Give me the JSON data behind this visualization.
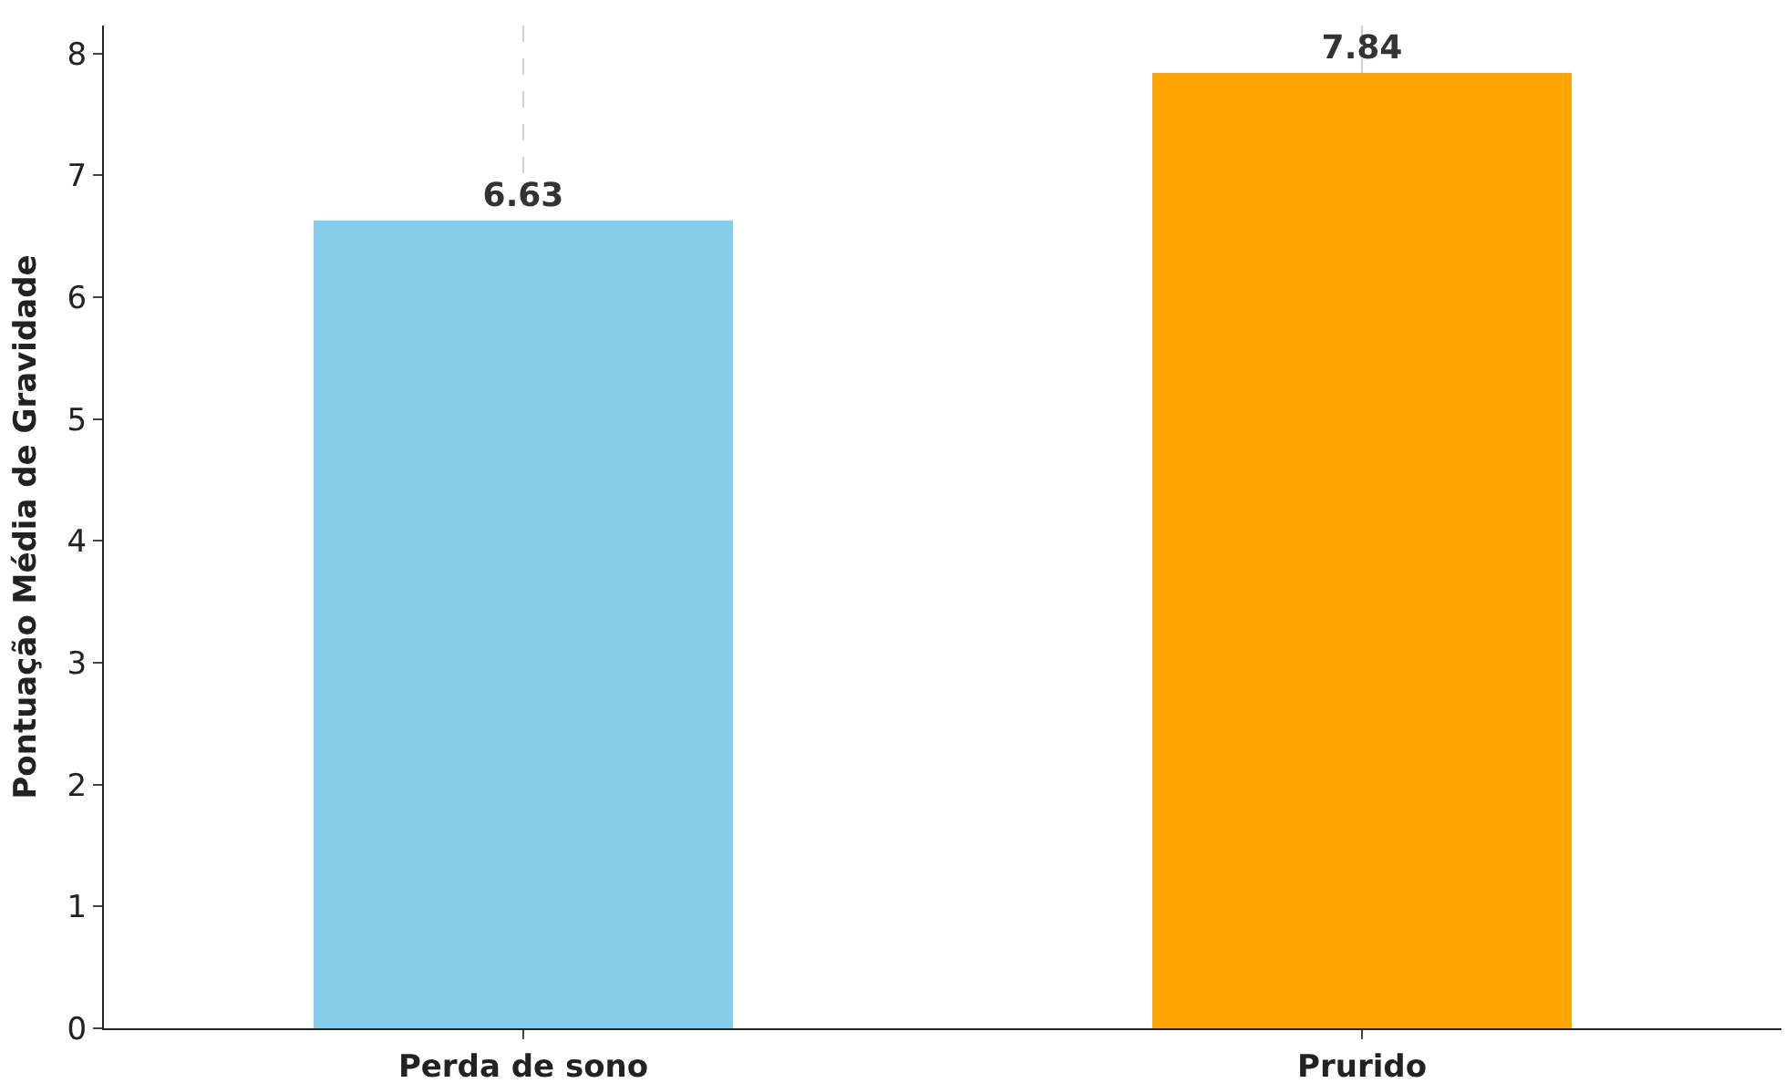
{
  "chart_data": {
    "type": "bar",
    "ylabel": "Pontuação Média de Gravidade",
    "categories": [
      "Perda de sono",
      "Prurido"
    ],
    "values": [
      6.63,
      7.84
    ],
    "colors": [
      "#87ceeb",
      "#ffa500"
    ],
    "ylim": [
      0,
      8.23
    ],
    "yticks": [
      0,
      1,
      2,
      3,
      4,
      5,
      6,
      7,
      8
    ],
    "grid": "x",
    "data_labels": true
  }
}
